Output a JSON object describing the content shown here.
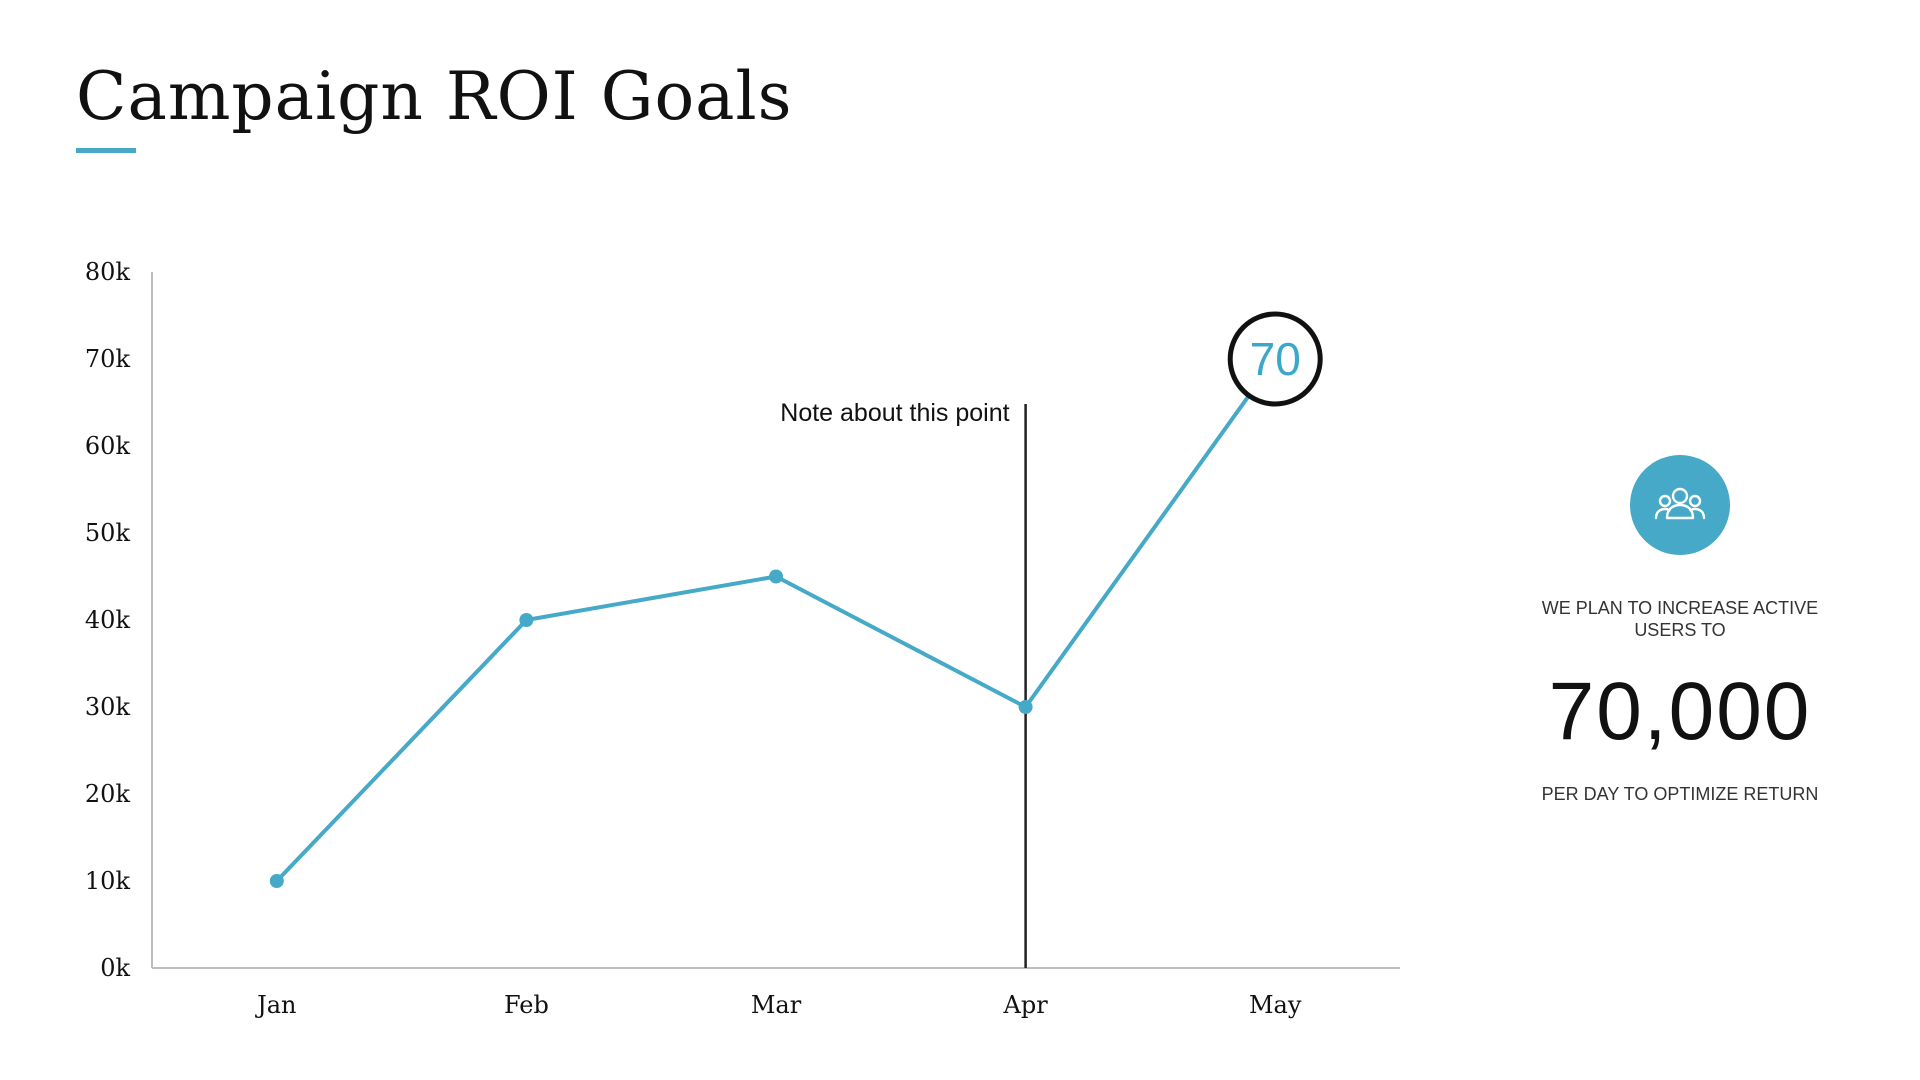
{
  "slide": {
    "title": "Campaign ROI Goals",
    "accent_color": "#45a9c7"
  },
  "chart_data": {
    "type": "line",
    "title": "",
    "xlabel": "",
    "ylabel": "",
    "categories": [
      "Jan",
      "Feb",
      "Mar",
      "Apr",
      "May"
    ],
    "values": [
      10,
      40,
      45,
      30,
      70
    ],
    "ylim": [
      0,
      80
    ],
    "yticks": [
      "0k",
      "10k",
      "20k",
      "30k",
      "40k",
      "50k",
      "60k",
      "70k",
      "80k"
    ],
    "grid": false,
    "legend": "none",
    "line_color": "#45a9c7",
    "annotation": {
      "category": "Apr",
      "text": "Note about this point"
    },
    "callout": {
      "category": "May",
      "text": "70"
    }
  },
  "stat": {
    "icon": "users-icon",
    "line1": "WE PLAN TO INCREASE ACTIVE USERS TO",
    "value": "70,000",
    "line2": "PER DAY TO OPTIMIZE RETURN"
  }
}
